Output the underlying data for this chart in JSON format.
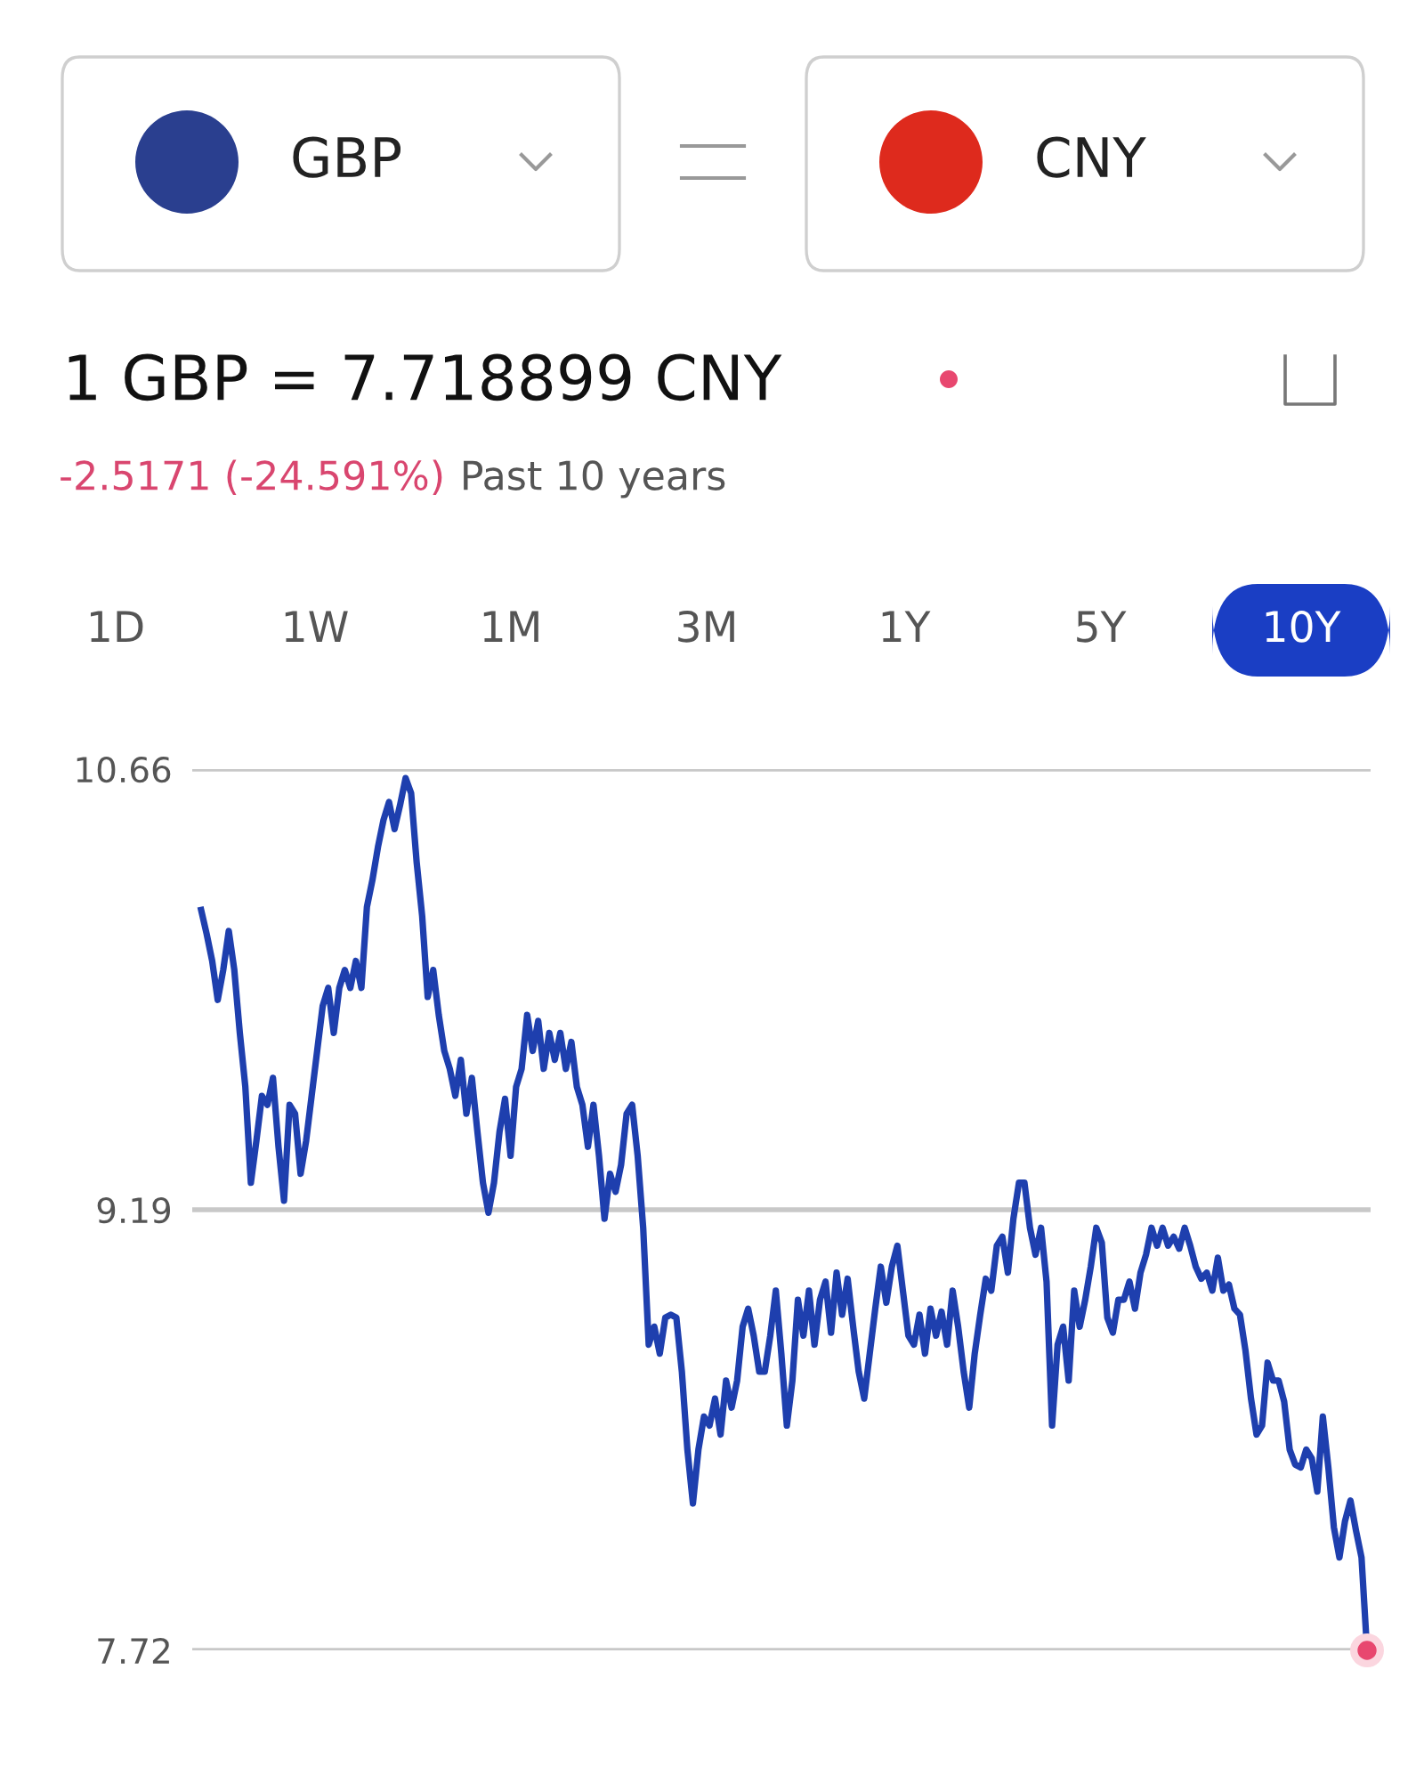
{
  "chart_data": {
    "type": "line",
    "title": "1 GBP = 7.718899 CNY",
    "subtitle": "-2.5171 (-24.591%)",
    "annotations": [
      "GBP",
      "CNY",
      "Past 10 years",
      "1D",
      "1W",
      "1M",
      "3M",
      "1Y",
      "5Y",
      "10Y"
    ],
    "categories": [
      null,
      null,
      null,
      null,
      null,
      null,
      null,
      null,
      null,
      null,
      null,
      null,
      null,
      null,
      null,
      null,
      null,
      null,
      null,
      null,
      null,
      null,
      null,
      null,
      null,
      null,
      null,
      null,
      null,
      null,
      null,
      null,
      null,
      null,
      null,
      null,
      null,
      null,
      null,
      null,
      null,
      null,
      null,
      null,
      null,
      null,
      null,
      null,
      null,
      null,
      null,
      null,
      null,
      null,
      null,
      null,
      null,
      null,
      null,
      null,
      null,
      null,
      null,
      null,
      null,
      null,
      null,
      null,
      null,
      null,
      null,
      null,
      null,
      null,
      null,
      null,
      null,
      null,
      null,
      null,
      null,
      null,
      null,
      null,
      null,
      null,
      null,
      null,
      null,
      null,
      null,
      null,
      null,
      null,
      null,
      null,
      null,
      null,
      null,
      null,
      null,
      null,
      null,
      null,
      null,
      null,
      null,
      null,
      null,
      null,
      null,
      null,
      null,
      null,
      null,
      null,
      null,
      null,
      null,
      null,
      null,
      null,
      null,
      null,
      null,
      null,
      null,
      null,
      null,
      null,
      null,
      null,
      null,
      null,
      null,
      null,
      null,
      null,
      null,
      null,
      null,
      null,
      null,
      null,
      null,
      null,
      null,
      null,
      null,
      null,
      null,
      null,
      null,
      null,
      null,
      null,
      null,
      null,
      null,
      null,
      null,
      null,
      null,
      null,
      null,
      null,
      null,
      null,
      null,
      null,
      null,
      null,
      null,
      null,
      null,
      null,
      null,
      null,
      null,
      null,
      null,
      null,
      null,
      null,
      null,
      null,
      null,
      null,
      null,
      null,
      null,
      null,
      null,
      null,
      null,
      null,
      null,
      null,
      null,
      null,
      null,
      null,
      null,
      null,
      null,
      null,
      null,
      null,
      null,
      null,
      null,
      null
    ],
    "series": [
      {
        "color": "#1e3fae",
        "values": [
          10.19,
          10.11,
          10.02,
          9.89,
          9.99,
          10.12,
          9.99,
          9.78,
          9.6,
          9.28,
          9.42,
          9.57,
          9.54,
          9.63,
          9.4,
          9.22,
          9.54,
          9.51,
          9.31,
          9.42,
          9.57,
          9.72,
          9.87,
          9.93,
          9.78,
          9.93,
          9.99,
          9.93,
          10.02,
          9.93,
          10.2,
          10.29,
          10.4,
          10.49,
          10.55,
          10.46,
          10.54,
          10.63,
          10.58,
          10.35,
          10.17,
          9.9,
          9.99,
          9.84,
          9.72,
          9.66,
          9.57,
          9.69,
          9.51,
          9.63,
          9.45,
          9.28,
          9.18,
          9.28,
          9.45,
          9.56,
          9.37,
          9.6,
          9.66,
          9.84,
          9.72,
          9.82,
          9.66,
          9.78,
          9.69,
          9.78,
          9.66,
          9.75,
          9.6,
          9.54,
          9.4,
          9.54,
          9.37,
          9.16,
          9.31,
          9.25,
          9.34,
          9.51,
          9.54,
          9.37,
          9.13,
          8.74,
          8.8,
          8.71,
          8.83,
          8.84,
          8.83,
          8.65,
          8.39,
          8.21,
          8.39,
          8.5,
          8.47,
          8.56,
          8.44,
          8.62,
          8.53,
          8.62,
          8.8,
          8.86,
          8.77,
          8.65,
          8.65,
          8.77,
          8.92,
          8.71,
          8.47,
          8.62,
          8.89,
          8.77,
          8.92,
          8.74,
          8.89,
          8.95,
          8.78,
          8.98,
          8.84,
          8.96,
          8.8,
          8.65,
          8.56,
          8.71,
          8.86,
          9.0,
          8.88,
          9.0,
          9.07,
          8.92,
          8.77,
          8.74,
          8.84,
          8.71,
          8.86,
          8.77,
          8.85,
          8.74,
          8.92,
          8.8,
          8.65,
          8.53,
          8.71,
          8.84,
          8.96,
          8.92,
          9.07,
          9.1,
          8.98,
          9.16,
          9.28,
          9.28,
          9.13,
          9.04,
          9.13,
          8.95,
          8.47,
          8.74,
          8.8,
          8.62,
          8.92,
          8.8,
          8.89,
          9.0,
          9.13,
          9.08,
          8.83,
          8.78,
          8.89,
          8.89,
          8.95,
          8.86,
          8.98,
          9.04,
          9.13,
          9.07,
          9.13,
          9.07,
          9.1,
          9.06,
          9.13,
          9.07,
          9.0,
          8.96,
          8.98,
          8.92,
          9.03,
          8.92,
          8.94,
          8.86,
          8.84,
          8.72,
          8.56,
          8.44,
          8.47,
          8.68,
          8.62,
          8.62,
          8.55,
          8.39,
          8.34,
          8.33,
          8.39,
          8.36,
          8.25,
          8.5,
          8.33,
          8.13,
          8.03,
          8.15,
          8.22,
          8.12,
          8.03,
          7.72
        ]
      }
    ],
    "ylim": [
      7.72,
      10.66
    ],
    "yticks": [
      7.72,
      9.19,
      10.66
    ],
    "grid": "y",
    "legend": false
  }
}
